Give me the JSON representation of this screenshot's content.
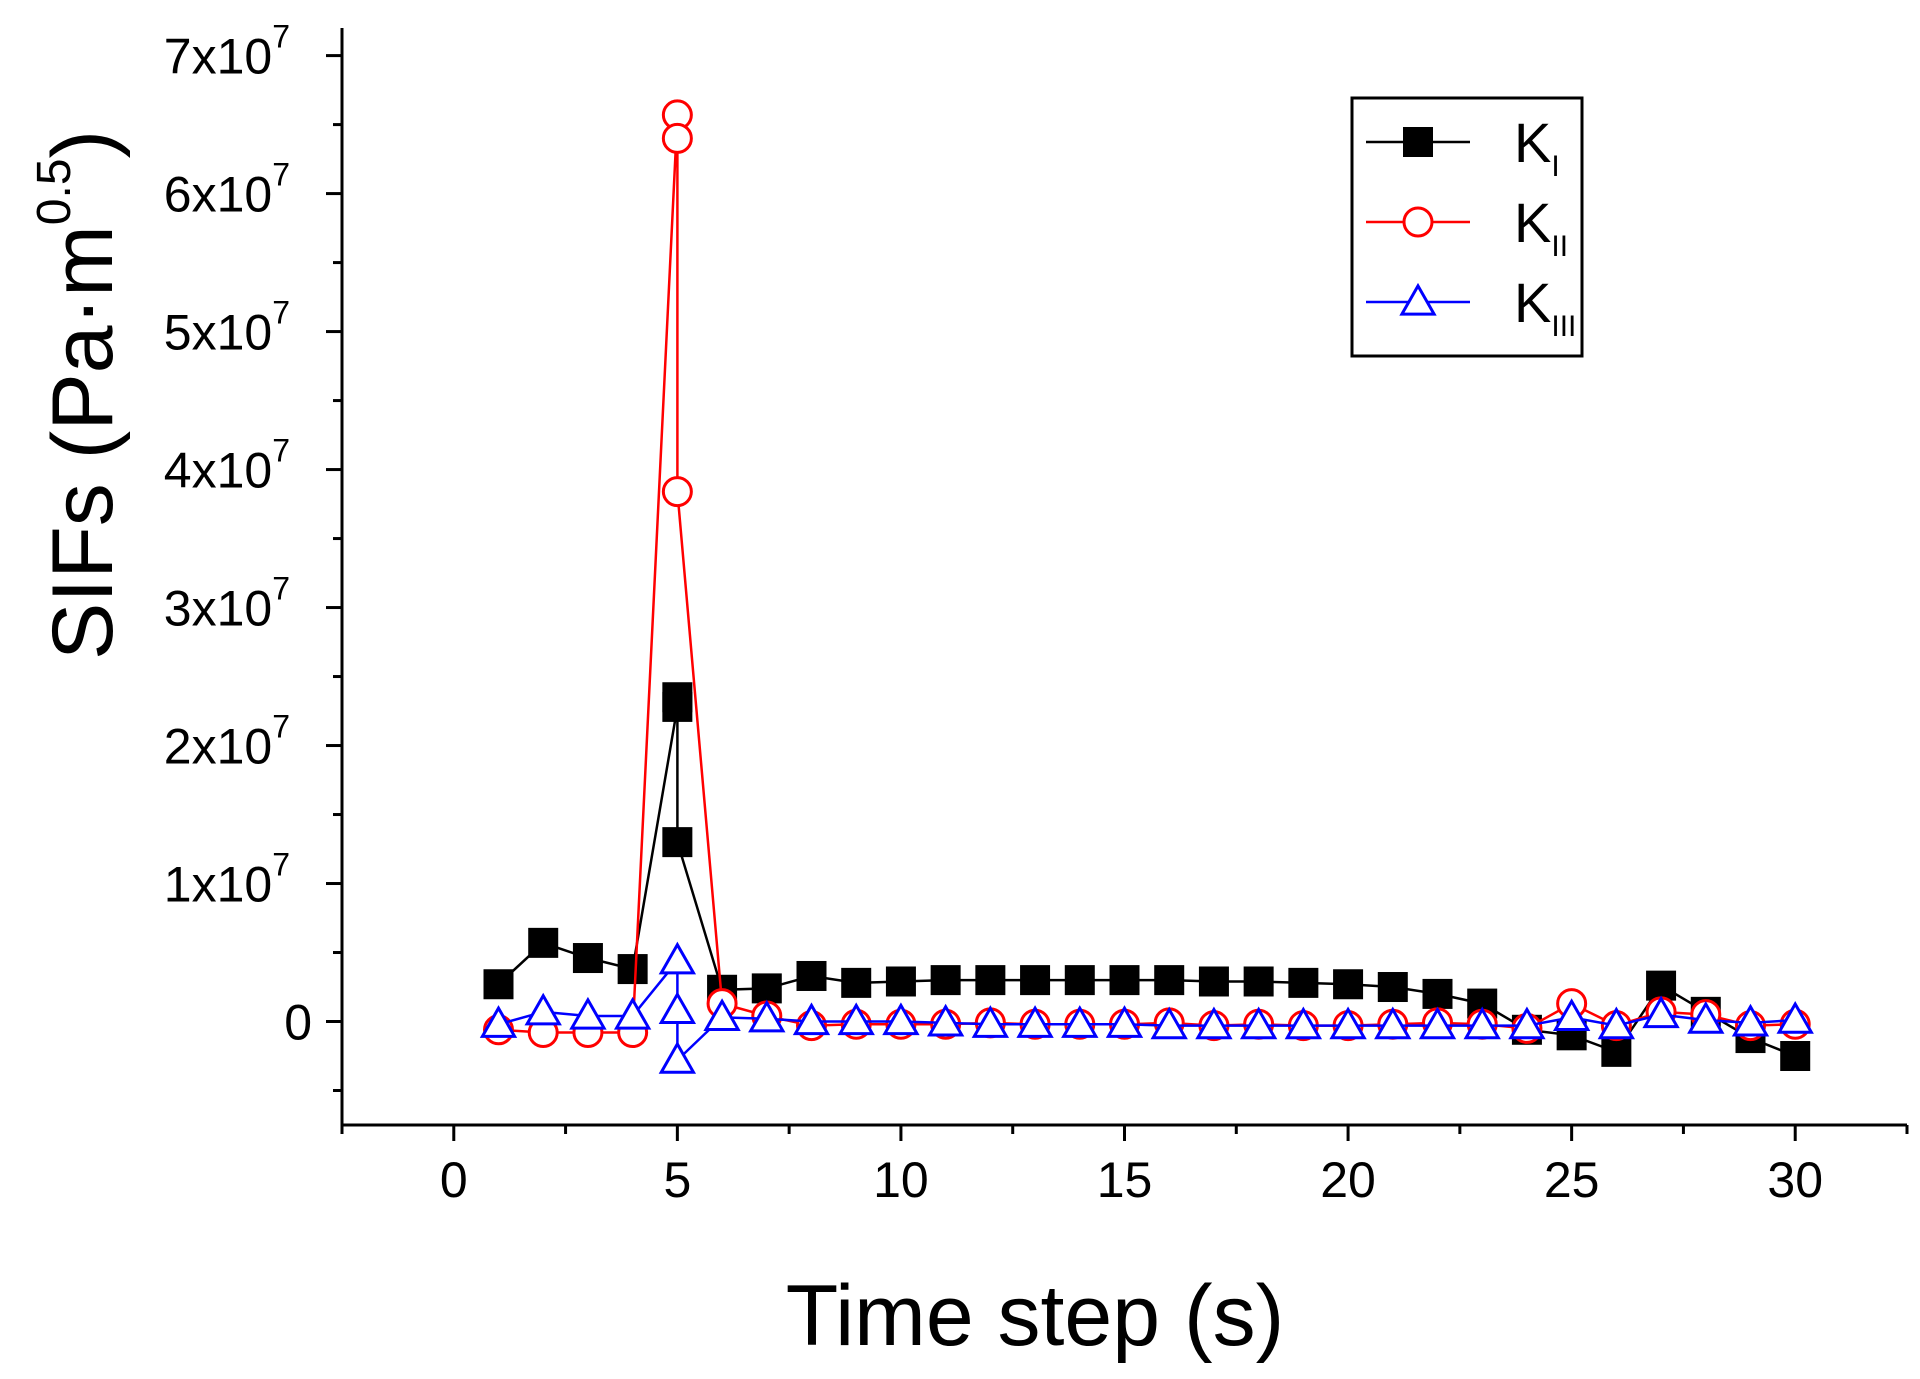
{
  "chart_data": {
    "type": "line",
    "title": "",
    "xlabel": "Time step (s)",
    "ylabel_main": "SIFs (Pa·m",
    "ylabel_sup": "0.5",
    "ylabel_close": ")",
    "xlim": [
      -2.5,
      32.5
    ],
    "ylim": [
      -7500000,
      72000000
    ],
    "xticks": [
      0,
      5,
      10,
      15,
      20,
      25,
      30
    ],
    "xtick_labels": [
      "0",
      "5",
      "10",
      "15",
      "20",
      "25",
      "30"
    ],
    "yticks": [
      0,
      10000000,
      20000000,
      30000000,
      40000000,
      50000000,
      60000000,
      70000000
    ],
    "ytick_labels": [
      {
        "base": "0",
        "exp": ""
      },
      {
        "base": "1x10",
        "exp": "7"
      },
      {
        "base": "2x10",
        "exp": "7"
      },
      {
        "base": "3x10",
        "exp": "7"
      },
      {
        "base": "4x10",
        "exp": "7"
      },
      {
        "base": "5x10",
        "exp": "7"
      },
      {
        "base": "6x10",
        "exp": "7"
      },
      {
        "base": "7x10",
        "exp": "7"
      }
    ],
    "legend_position": "top-right",
    "series": [
      {
        "name": "K",
        "sub": "I",
        "color": "#000000",
        "marker": "filled-square",
        "x": [
          1,
          2,
          3,
          4,
          5,
          5,
          5,
          6,
          7,
          8,
          9,
          10,
          11,
          12,
          13,
          14,
          15,
          16,
          17,
          18,
          19,
          20,
          21,
          22,
          23,
          24,
          25,
          26,
          27,
          28,
          29,
          30
        ],
        "y": [
          2700000,
          5700000,
          4600000,
          3800000,
          22800000,
          23500000,
          13000000,
          2300000,
          2400000,
          3300000,
          2800000,
          2900000,
          3000000,
          3000000,
          3000000,
          3000000,
          3000000,
          3000000,
          2900000,
          2900000,
          2800000,
          2700000,
          2500000,
          2000000,
          1300000,
          -600000,
          -1000000,
          -2200000,
          2600000,
          700000,
          -1200000,
          -2500000
        ]
      },
      {
        "name": "K",
        "sub": "II",
        "color": "#ff0000",
        "marker": "open-circle",
        "x": [
          1,
          2,
          3,
          4,
          5,
          5,
          5,
          6,
          7,
          8,
          9,
          10,
          11,
          12,
          13,
          14,
          15,
          16,
          17,
          18,
          19,
          20,
          21,
          22,
          23,
          24,
          25,
          26,
          27,
          28,
          29,
          30
        ],
        "y": [
          -600000,
          -800000,
          -800000,
          -800000,
          65700000,
          64000000,
          38400000,
          1300000,
          400000,
          -300000,
          -200000,
          -200000,
          -200000,
          -100000,
          -200000,
          -200000,
          -200000,
          -100000,
          -300000,
          -200000,
          -300000,
          -300000,
          -200000,
          -100000,
          -200000,
          -500000,
          1300000,
          -300000,
          700000,
          500000,
          -300000,
          -200000
        ]
      },
      {
        "name": "K",
        "sub": "III",
        "color": "#0000ff",
        "marker": "open-triangle",
        "x": [
          1,
          2,
          3,
          4,
          5,
          5,
          5,
          6,
          7,
          8,
          9,
          10,
          11,
          12,
          13,
          14,
          15,
          16,
          17,
          18,
          19,
          20,
          21,
          22,
          23,
          24,
          25,
          26,
          27,
          28,
          29,
          30
        ],
        "y": [
          -200000,
          700000,
          400000,
          400000,
          4400000,
          800000,
          -2800000,
          300000,
          200000,
          0,
          0,
          0,
          -100000,
          -200000,
          -200000,
          -200000,
          -200000,
          -300000,
          -300000,
          -300000,
          -300000,
          -300000,
          -300000,
          -300000,
          -300000,
          -300000,
          300000,
          -300000,
          500000,
          100000,
          -100000,
          100000
        ]
      }
    ]
  }
}
